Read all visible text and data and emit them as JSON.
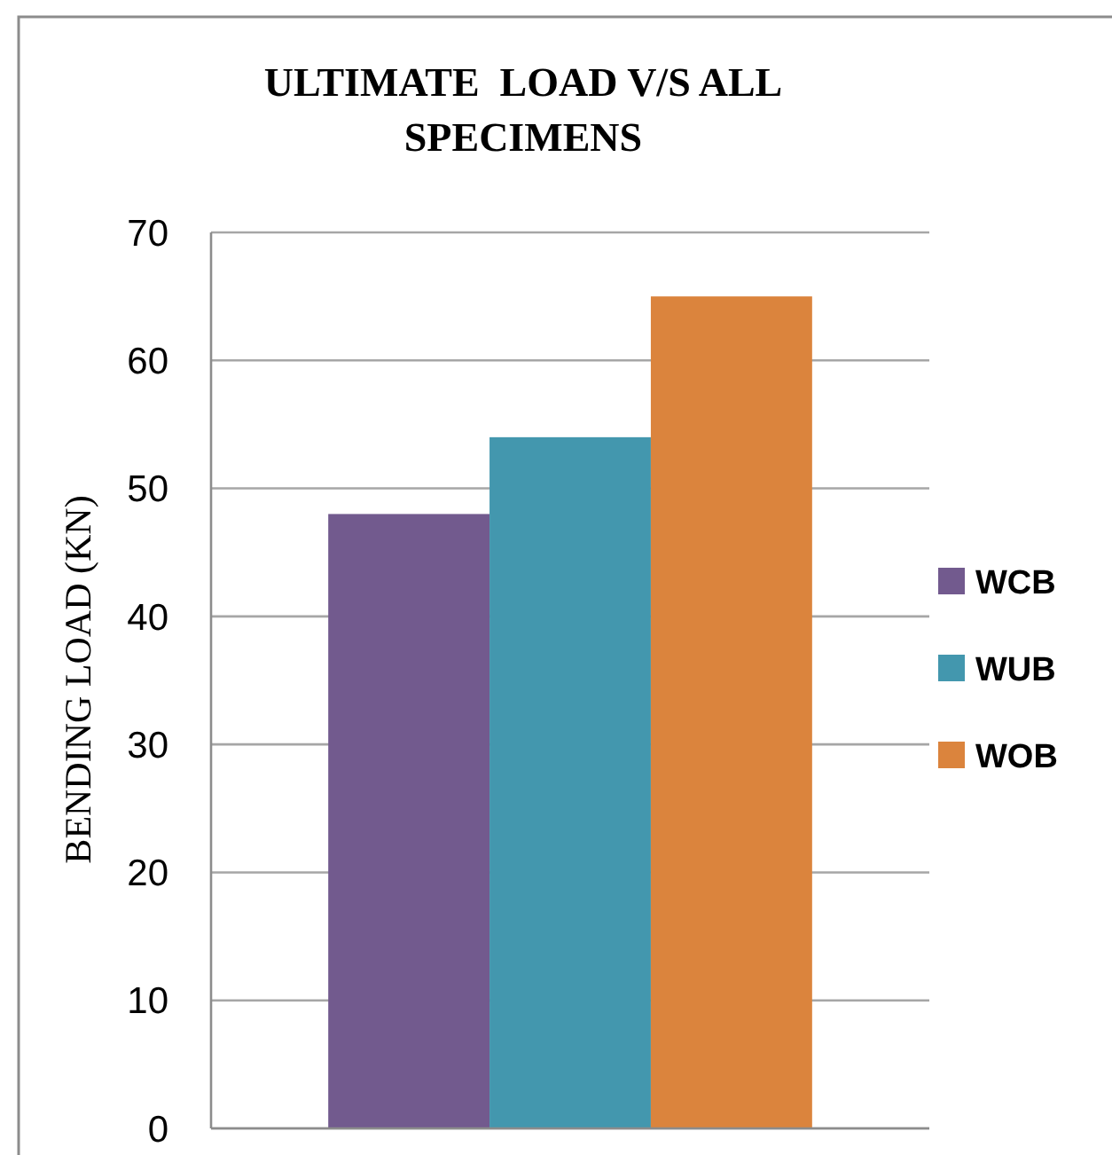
{
  "chart_data": {
    "type": "bar",
    "title": "ULTIMATE  LOAD V/S ALL SPECIMENS",
    "ylabel": "BENDING LOAD (KN)",
    "categories": [
      null
    ],
    "series": [
      {
        "name": "WCB",
        "color": "#725a8e",
        "values": [
          48
        ]
      },
      {
        "name": "WUB",
        "color": "#4397ae",
        "values": [
          54
        ]
      },
      {
        "name": "WOB",
        "color": "#db843d",
        "values": [
          65
        ]
      }
    ],
    "ylim": [
      0,
      70
    ],
    "yticks": [
      0,
      10,
      20,
      30,
      40,
      50,
      60,
      70
    ],
    "grid": "y",
    "legend": "right"
  }
}
